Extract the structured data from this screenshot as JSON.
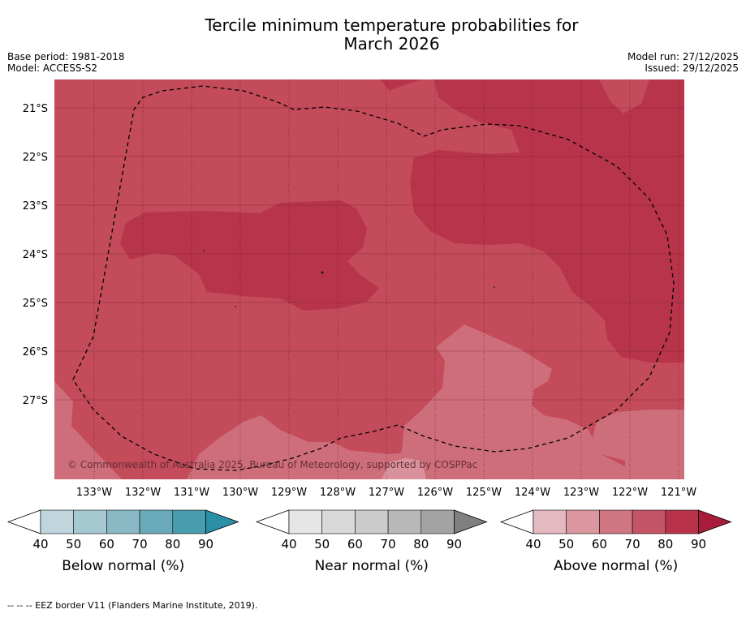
{
  "title_line1": "Tercile minimum temperature probabilities for",
  "title_line2": "March 2026",
  "base_period": "Base period: 1981-2018",
  "model": "Model: ACCESS-S2",
  "model_run": "Model run: 27/12/2025",
  "issued": "Issued: 29/12/2025",
  "copyright": "© Commonwealth of Australia 2025, Bureau of Meteorology, supported by COSPPac",
  "map": {
    "lat_labels": [
      "21°S",
      "22°S",
      "23°S",
      "24°S",
      "25°S",
      "26°S",
      "27°S"
    ],
    "lon_labels": [
      "133°W",
      "132°W",
      "131°W",
      "130°W",
      "129°W",
      "128°W",
      "127°W",
      "126°W",
      "125°W",
      "124°W",
      "123°W",
      "122°W",
      "121°W"
    ],
    "colors": {
      "above_60_70": "#cf6e7b",
      "above_70_80": "#c34b5a",
      "above_80_90": "#b8344a"
    },
    "border_style": "dashed"
  },
  "legends": [
    {
      "label": "Below normal (%)",
      "ticks": [
        "40",
        "50",
        "60",
        "70",
        "80",
        "90"
      ],
      "colors": [
        "#c0d6dc",
        "#a6c8d0",
        "#8ab9c5",
        "#6aaab8",
        "#4a9dae",
        "#2b8fa5"
      ]
    },
    {
      "label": "Near normal (%)",
      "ticks": [
        "40",
        "50",
        "60",
        "70",
        "80",
        "90"
      ],
      "colors": [
        "#e6e6e6",
        "#d9d9d9",
        "#cbcbcb",
        "#b8b8b8",
        "#a3a3a3",
        "#808080"
      ]
    },
    {
      "label": "Above normal (%)",
      "ticks": [
        "40",
        "50",
        "60",
        "70",
        "80",
        "90"
      ],
      "colors": [
        "#e4b9bf",
        "#da97a0",
        "#cf7682",
        "#c45567",
        "#b8334a",
        "#a81c3a"
      ]
    }
  ],
  "footnote": "-- -- -- EEZ border V11 (Flanders Marine Institute, 2019)."
}
